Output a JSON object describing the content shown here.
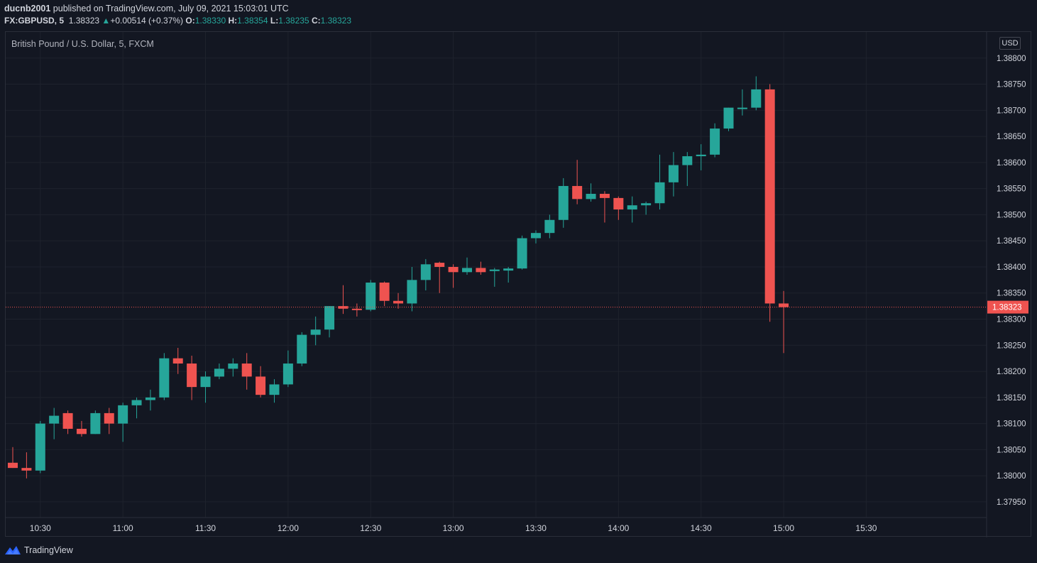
{
  "header": {
    "publisher_user": "ducnb2001",
    "publisher_text": " published on TradingView.com, July 09, 2021 15:03:01 UTC",
    "symbol": "FX:GBPUSD, 5",
    "last": "1.38323",
    "change_arrow": "▲",
    "change": "+0.00514 (+0.37%)",
    "o_label": "O:",
    "o_value": "1.38330",
    "h_label": "H:",
    "h_value": "1.38354",
    "l_label": "L:",
    "l_value": "1.38235",
    "c_label": "C:",
    "c_value": "1.38323"
  },
  "footer": {
    "brand": "TradingView"
  },
  "colors": {
    "up": "#26a69a",
    "down": "#ef5350",
    "bg": "#131722",
    "grid": "#1e222d",
    "text": "#d1d4dc"
  },
  "chart_data": {
    "type": "candlestick",
    "title": "British Pound / U.S. Dollar, 5, FXCM",
    "currency_label": "USD",
    "last_price_label": "1.38323",
    "last_price": 1.38323,
    "ylim": [
      1.3792,
      1.3885
    ],
    "y_ticks": [
      1.3795,
      1.38,
      1.3805,
      1.381,
      1.3815,
      1.382,
      1.3825,
      1.383,
      1.3835,
      1.384,
      1.3845,
      1.385,
      1.3855,
      1.386,
      1.3865,
      1.387,
      1.3875,
      1.388
    ],
    "y_tick_labels": [
      "1.37950",
      "1.38000",
      "1.38050",
      "1.38100",
      "1.38150",
      "1.38200",
      "1.38250",
      "1.38300",
      "1.38350",
      "1.38400",
      "1.38450",
      "1.38500",
      "1.38550",
      "1.38600",
      "1.38650",
      "1.38700",
      "1.38750",
      "1.38800"
    ],
    "x_start": "10:20",
    "x_end": "15:50",
    "x_ticks": [
      "10:30",
      "11:00",
      "11:30",
      "12:00",
      "12:30",
      "13:00",
      "13:30",
      "14:00",
      "14:30",
      "15:00",
      "15:30"
    ],
    "candles": [
      {
        "t": "10:20",
        "o": 1.38025,
        "h": 1.38055,
        "l": 1.38015,
        "c": 1.38015
      },
      {
        "t": "10:25",
        "o": 1.38015,
        "h": 1.38045,
        "l": 1.37995,
        "c": 1.3801
      },
      {
        "t": "10:30",
        "o": 1.3801,
        "h": 1.38105,
        "l": 1.38005,
        "c": 1.381
      },
      {
        "t": "10:35",
        "o": 1.381,
        "h": 1.3813,
        "l": 1.3807,
        "c": 1.38115
      },
      {
        "t": "10:40",
        "o": 1.3812,
        "h": 1.38125,
        "l": 1.3808,
        "c": 1.3809
      },
      {
        "t": "10:45",
        "o": 1.3809,
        "h": 1.38105,
        "l": 1.38075,
        "c": 1.3808
      },
      {
        "t": "10:50",
        "o": 1.3808,
        "h": 1.38125,
        "l": 1.3808,
        "c": 1.3812
      },
      {
        "t": "10:55",
        "o": 1.3812,
        "h": 1.3813,
        "l": 1.3808,
        "c": 1.381
      },
      {
        "t": "11:00",
        "o": 1.381,
        "h": 1.3814,
        "l": 1.38065,
        "c": 1.38135
      },
      {
        "t": "11:05",
        "o": 1.38135,
        "h": 1.3815,
        "l": 1.3811,
        "c": 1.38145
      },
      {
        "t": "11:10",
        "o": 1.38145,
        "h": 1.38165,
        "l": 1.38125,
        "c": 1.3815
      },
      {
        "t": "11:15",
        "o": 1.3815,
        "h": 1.38235,
        "l": 1.38145,
        "c": 1.38225
      },
      {
        "t": "11:20",
        "o": 1.38225,
        "h": 1.38245,
        "l": 1.38195,
        "c": 1.38215
      },
      {
        "t": "11:25",
        "o": 1.38215,
        "h": 1.3823,
        "l": 1.38145,
        "c": 1.3817
      },
      {
        "t": "11:30",
        "o": 1.3817,
        "h": 1.382,
        "l": 1.3814,
        "c": 1.3819
      },
      {
        "t": "11:35",
        "o": 1.3819,
        "h": 1.38215,
        "l": 1.38185,
        "c": 1.38205
      },
      {
        "t": "11:40",
        "o": 1.38205,
        "h": 1.38225,
        "l": 1.3819,
        "c": 1.38215
      },
      {
        "t": "11:45",
        "o": 1.38215,
        "h": 1.38235,
        "l": 1.38165,
        "c": 1.3819
      },
      {
        "t": "11:50",
        "o": 1.3819,
        "h": 1.3821,
        "l": 1.3815,
        "c": 1.38155
      },
      {
        "t": "11:55",
        "o": 1.38155,
        "h": 1.38185,
        "l": 1.3814,
        "c": 1.38175
      },
      {
        "t": "12:00",
        "o": 1.38175,
        "h": 1.3824,
        "l": 1.3817,
        "c": 1.38215
      },
      {
        "t": "12:05",
        "o": 1.38215,
        "h": 1.38275,
        "l": 1.3821,
        "c": 1.3827
      },
      {
        "t": "12:10",
        "o": 1.3827,
        "h": 1.38305,
        "l": 1.3825,
        "c": 1.3828
      },
      {
        "t": "12:15",
        "o": 1.3828,
        "h": 1.38325,
        "l": 1.38265,
        "c": 1.38325
      },
      {
        "t": "12:20",
        "o": 1.38325,
        "h": 1.38365,
        "l": 1.3831,
        "c": 1.3832
      },
      {
        "t": "12:25",
        "o": 1.3832,
        "h": 1.3833,
        "l": 1.38305,
        "c": 1.38318
      },
      {
        "t": "12:30",
        "o": 1.38318,
        "h": 1.38375,
        "l": 1.38315,
        "c": 1.3837
      },
      {
        "t": "12:35",
        "o": 1.3837,
        "h": 1.38372,
        "l": 1.38325,
        "c": 1.38335
      },
      {
        "t": "12:40",
        "o": 1.38335,
        "h": 1.3835,
        "l": 1.3832,
        "c": 1.3833
      },
      {
        "t": "12:45",
        "o": 1.3833,
        "h": 1.384,
        "l": 1.38315,
        "c": 1.38375
      },
      {
        "t": "12:50",
        "o": 1.38375,
        "h": 1.38415,
        "l": 1.38355,
        "c": 1.38405
      },
      {
        "t": "12:55",
        "o": 1.38408,
        "h": 1.3841,
        "l": 1.3835,
        "c": 1.384
      },
      {
        "t": "13:00",
        "o": 1.384,
        "h": 1.38405,
        "l": 1.3836,
        "c": 1.3839
      },
      {
        "t": "13:05",
        "o": 1.3839,
        "h": 1.38418,
        "l": 1.38385,
        "c": 1.38398
      },
      {
        "t": "13:10",
        "o": 1.38398,
        "h": 1.3841,
        "l": 1.38385,
        "c": 1.3839
      },
      {
        "t": "13:15",
        "o": 1.38392,
        "h": 1.38398,
        "l": 1.38362,
        "c": 1.38395
      },
      {
        "t": "13:20",
        "o": 1.38393,
        "h": 1.384,
        "l": 1.3837,
        "c": 1.38397
      },
      {
        "t": "13:25",
        "o": 1.38397,
        "h": 1.3846,
        "l": 1.38395,
        "c": 1.38455
      },
      {
        "t": "13:30",
        "o": 1.38455,
        "h": 1.3847,
        "l": 1.38445,
        "c": 1.38465
      },
      {
        "t": "13:35",
        "o": 1.38465,
        "h": 1.385,
        "l": 1.38455,
        "c": 1.3849
      },
      {
        "t": "13:40",
        "o": 1.3849,
        "h": 1.3857,
        "l": 1.38475,
        "c": 1.38555
      },
      {
        "t": "13:45",
        "o": 1.38555,
        "h": 1.38605,
        "l": 1.3852,
        "c": 1.3853
      },
      {
        "t": "13:50",
        "o": 1.3853,
        "h": 1.3856,
        "l": 1.38525,
        "c": 1.3854
      },
      {
        "t": "13:55",
        "o": 1.3854,
        "h": 1.38545,
        "l": 1.38485,
        "c": 1.38532
      },
      {
        "t": "14:00",
        "o": 1.38532,
        "h": 1.38535,
        "l": 1.3849,
        "c": 1.3851
      },
      {
        "t": "14:05",
        "o": 1.3851,
        "h": 1.38535,
        "l": 1.38485,
        "c": 1.38518
      },
      {
        "t": "14:10",
        "o": 1.38518,
        "h": 1.38525,
        "l": 1.385,
        "c": 1.38522
      },
      {
        "t": "14:15",
        "o": 1.38522,
        "h": 1.38615,
        "l": 1.3851,
        "c": 1.38562
      },
      {
        "t": "14:20",
        "o": 1.38562,
        "h": 1.3862,
        "l": 1.38535,
        "c": 1.38595
      },
      {
        "t": "14:25",
        "o": 1.38595,
        "h": 1.3862,
        "l": 1.38555,
        "c": 1.38612
      },
      {
        "t": "14:30",
        "o": 1.38612,
        "h": 1.38635,
        "l": 1.38585,
        "c": 1.38615
      },
      {
        "t": "14:35",
        "o": 1.38615,
        "h": 1.38675,
        "l": 1.3861,
        "c": 1.38665
      },
      {
        "t": "14:40",
        "o": 1.38665,
        "h": 1.38705,
        "l": 1.3866,
        "c": 1.38705
      },
      {
        "t": "14:45",
        "o": 1.38705,
        "h": 1.3874,
        "l": 1.3869,
        "c": 1.38705
      },
      {
        "t": "14:50",
        "o": 1.38705,
        "h": 1.38765,
        "l": 1.387,
        "c": 1.3874
      },
      {
        "t": "14:55",
        "o": 1.3874,
        "h": 1.3875,
        "l": 1.38295,
        "c": 1.3833
      },
      {
        "t": "15:00",
        "o": 1.3833,
        "h": 1.38354,
        "l": 1.38235,
        "c": 1.38323
      }
    ]
  }
}
